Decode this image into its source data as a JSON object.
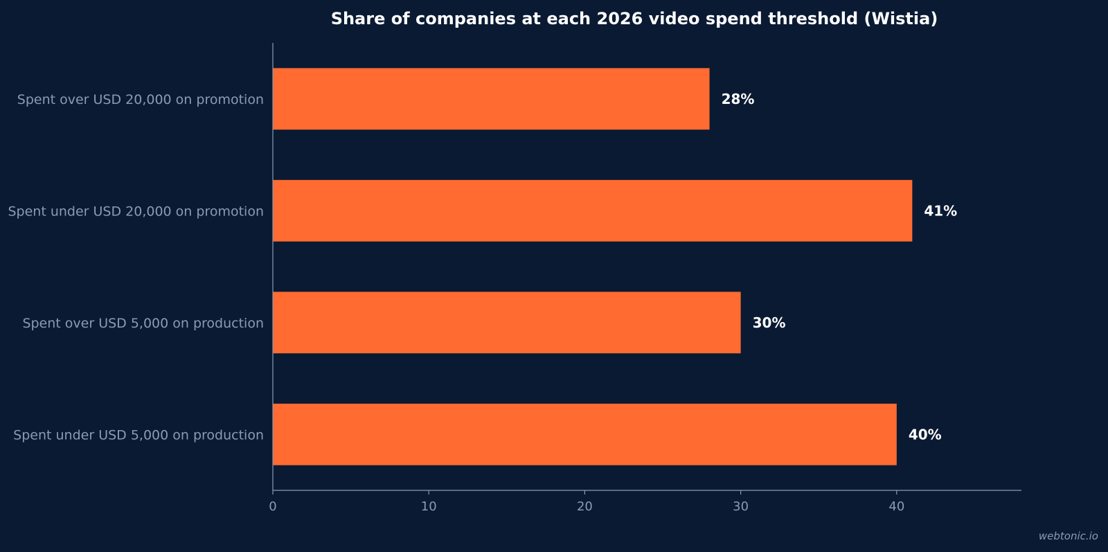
{
  "chart_data": {
    "type": "bar",
    "orientation": "horizontal",
    "title": "Share of companies at each 2026 video spend threshold (Wistia)",
    "xlabel": "",
    "ylabel": "",
    "categories": [
      "Spent over USD 20,000 on promotion",
      "Spent under USD 20,000 on promotion",
      "Spent over USD 5,000 on production",
      "Spent under USD 5,000 on production"
    ],
    "values": [
      28,
      41,
      30,
      40
    ],
    "value_labels": [
      "28%",
      "41%",
      "30%",
      "40%"
    ],
    "xlim": [
      0,
      48
    ],
    "x_ticks": [
      0,
      10,
      20,
      30,
      40
    ],
    "grid": false,
    "bar_color": "#ff6b30"
  },
  "watermark": "webtonic.io",
  "colors": {
    "background": "#0b1a33",
    "text_primary": "#ffffff",
    "text_secondary": "#8a9bb5",
    "axis": "#8a9bb5"
  }
}
